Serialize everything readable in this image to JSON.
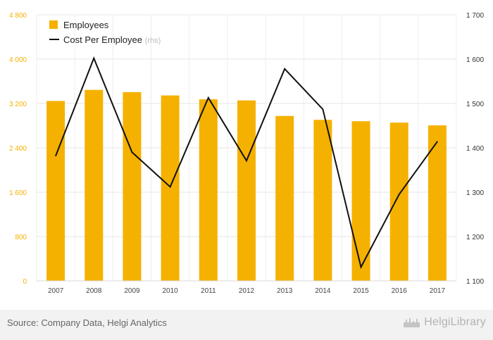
{
  "chart_data": {
    "type": "bar+line",
    "categories": [
      "2007",
      "2008",
      "2009",
      "2010",
      "2011",
      "2012",
      "2013",
      "2014",
      "2015",
      "2016",
      "2017"
    ],
    "series": [
      {
        "name": "Employees",
        "type": "bar",
        "axis": "left",
        "color": "#f5b100",
        "values": [
          3245,
          3445,
          3405,
          3345,
          3275,
          3255,
          2975,
          2905,
          2880,
          2855,
          2805
        ]
      },
      {
        "name": "Cost Per Employee",
        "name_suffix": "(rhs)",
        "type": "line",
        "axis": "right",
        "color": "#111111",
        "values": [
          1382,
          1602,
          1390,
          1312,
          1513,
          1371,
          1578,
          1487,
          1131,
          1295,
          1414
        ]
      }
    ],
    "y_left": {
      "ticks": [
        "0",
        "800",
        "1 600",
        "2 400",
        "3 200",
        "4 000",
        "4 800"
      ],
      "min": 0,
      "max": 4800,
      "color": "#f5b100"
    },
    "y_right": {
      "ticks": [
        "1 100",
        "1 200",
        "1 300",
        "1 400",
        "1 500",
        "1 600",
        "1 700"
      ],
      "min": 1100,
      "max": 1700,
      "color": "#333333"
    },
    "grid": true,
    "legend": "top-left"
  },
  "footer": {
    "source": "Source: Company Data, Helgi Analytics",
    "brand": "HelgiLibrary"
  }
}
